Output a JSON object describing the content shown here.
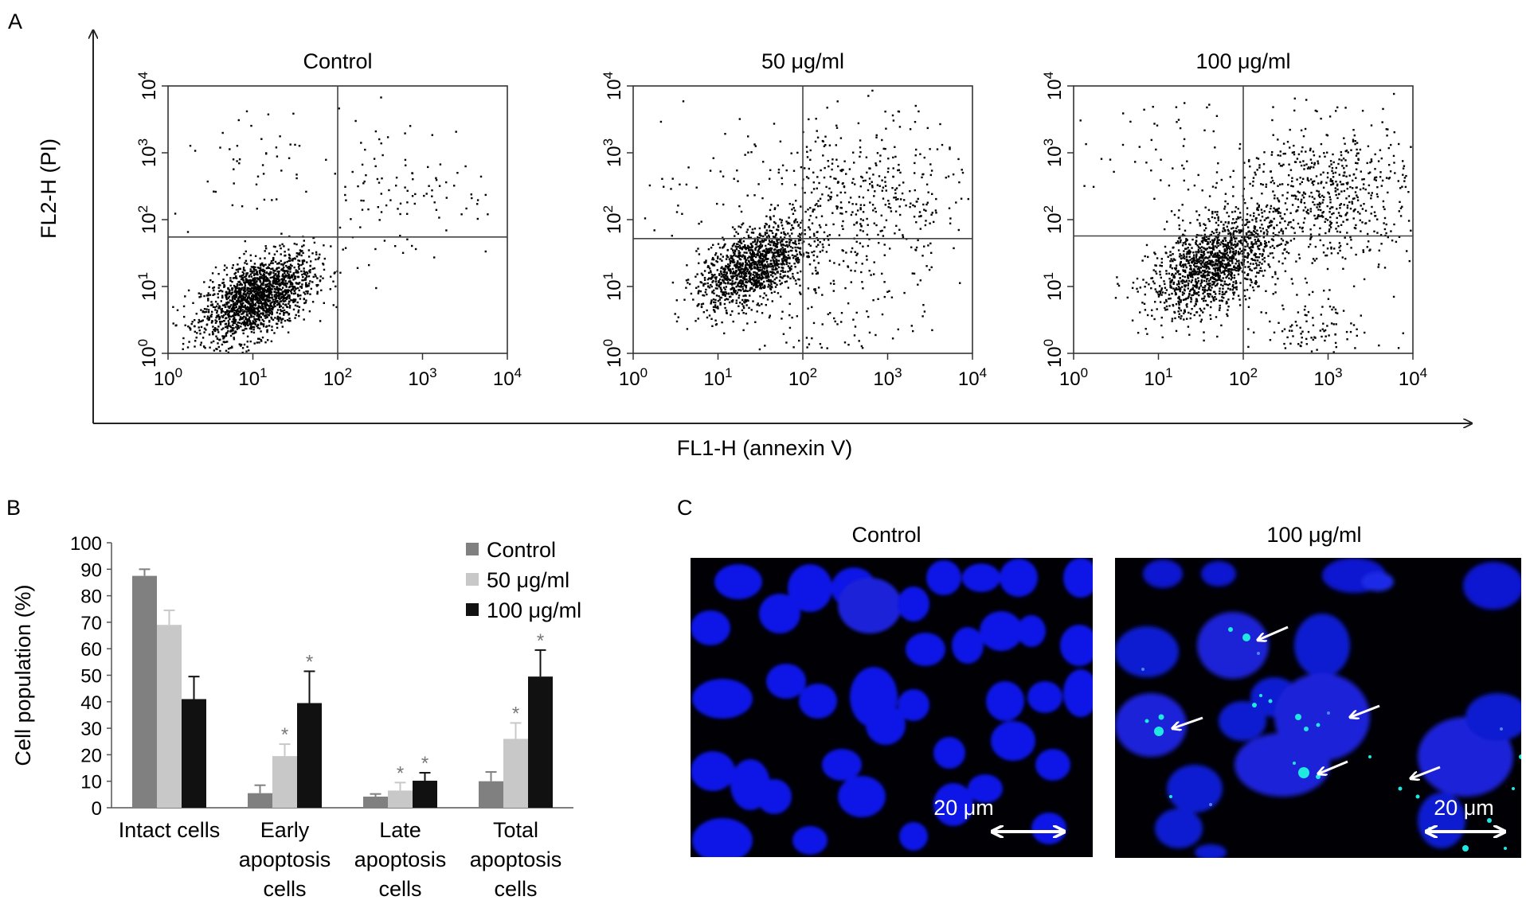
{
  "panels": {
    "a": {
      "letter": "A",
      "x_axis_label": "FL1-H (annexin V)",
      "y_axis_label": "FL2-H (PI)",
      "plots": [
        {
          "title": "Control",
          "gate_x": 100,
          "gate_y": 55
        },
        {
          "title": "50 μg/ml",
          "gate_x": 100,
          "gate_y": 52
        },
        {
          "title": "100 μg/ml",
          "gate_x": 100,
          "gate_y": 57
        }
      ],
      "tick_exponents": [
        "0",
        "1",
        "2",
        "3",
        "4"
      ]
    },
    "b": {
      "letter": "B"
    },
    "c": {
      "letter": "C",
      "images": [
        {
          "title": "Control",
          "scale_label": "20 μm"
        },
        {
          "title": "100 μg/ml",
          "scale_label": "20 μm"
        }
      ]
    }
  },
  "chart_data": [
    {
      "type": "scatter",
      "title": "Control",
      "xlabel": "FL1-H (annexin V)",
      "ylabel": "FL2-H (PI)",
      "xscale": "log",
      "yscale": "log",
      "xlim": [
        1,
        10000
      ],
      "ylim": [
        1,
        10000
      ],
      "clusters": [
        {
          "center_x": 11,
          "center_y": 7,
          "spread_log": 0.33,
          "count": 1800
        },
        {
          "center_x": 600,
          "center_y": 300,
          "spread_log": 0.55,
          "count": 110
        },
        {
          "center_x": 8,
          "center_y": 800,
          "spread_log": 0.45,
          "count": 45
        }
      ]
    },
    {
      "type": "scatter",
      "title": "50 μg/ml",
      "xlabel": "FL1-H (annexin V)",
      "ylabel": "FL2-H (PI)",
      "xscale": "log",
      "yscale": "log",
      "xlim": [
        1,
        10000
      ],
      "ylim": [
        1,
        10000
      ],
      "clusters": [
        {
          "center_x": 25,
          "center_y": 20,
          "spread_log": 0.32,
          "count": 1300
        },
        {
          "center_x": 500,
          "center_y": 200,
          "spread_log": 0.6,
          "count": 450
        },
        {
          "center_x": 300,
          "center_y": 2,
          "spread_log": 0.55,
          "count": 120
        },
        {
          "center_x": 10,
          "center_y": 400,
          "spread_log": 0.5,
          "count": 40
        }
      ]
    },
    {
      "type": "scatter",
      "title": "100 μg/ml",
      "xlabel": "FL1-H (annexin V)",
      "ylabel": "FL2-H (PI)",
      "xscale": "log",
      "yscale": "log",
      "xlim": [
        1,
        10000
      ],
      "ylim": [
        1,
        10000
      ],
      "clusters": [
        {
          "center_x": 45,
          "center_y": 22,
          "spread_log": 0.38,
          "count": 1400
        },
        {
          "center_x": 900,
          "center_y": 250,
          "spread_log": 0.55,
          "count": 650
        },
        {
          "center_x": 600,
          "center_y": 1.5,
          "spread_log": 0.4,
          "count": 160
        },
        {
          "center_x": 10,
          "center_y": 700,
          "spread_log": 0.5,
          "count": 55
        }
      ]
    },
    {
      "type": "bar",
      "categories": [
        "Intact cells",
        "Early\napoptosis\ncells",
        "Late\napoptosis\ncells",
        "Total\napoptosis\ncells"
      ],
      "series": [
        {
          "name": "Control",
          "color": "#808080",
          "values": [
            87.5,
            5.5,
            4.2,
            10
          ],
          "errors": [
            2.5,
            3,
            1,
            3.5
          ],
          "significant": [
            false,
            false,
            false,
            false
          ]
        },
        {
          "name": "50 μg/ml",
          "color": "#c8c8c8",
          "values": [
            69,
            19.5,
            6.5,
            26
          ],
          "errors": [
            5.5,
            4.5,
            3,
            6
          ],
          "significant": [
            false,
            true,
            true,
            true
          ]
        },
        {
          "name": "100 μg/ml",
          "color": "#111111",
          "values": [
            41,
            39.5,
            10.2,
            49.5
          ],
          "errors": [
            8.5,
            12,
            3,
            10
          ],
          "significant": [
            false,
            true,
            true,
            true
          ]
        }
      ],
      "ylabel": "Cell population (%)",
      "ylim": [
        0,
        100
      ],
      "yticks": [
        0,
        10,
        20,
        30,
        40,
        50,
        60,
        70,
        80,
        90,
        100
      ],
      "significance_marker": "*",
      "legend_position": "top-right"
    }
  ]
}
